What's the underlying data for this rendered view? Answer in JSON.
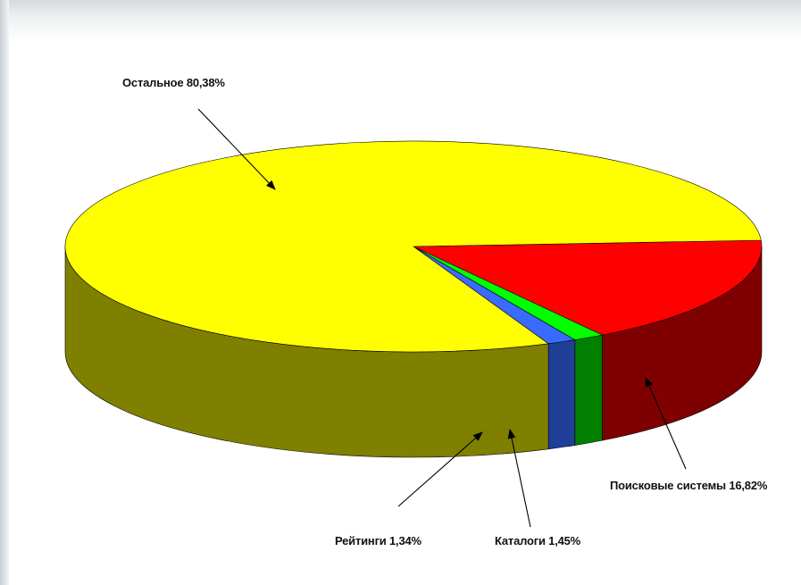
{
  "chart_data": {
    "type": "pie",
    "style": "3d",
    "slices": [
      {
        "label": "Остальное",
        "value": 80.38,
        "text": "Остальное 80,38%",
        "top_color": "#ffff00",
        "side_color": "#7f7f00"
      },
      {
        "label": "Поисковые системы",
        "value": 16.82,
        "text": "Поисковые системы 16,82%",
        "top_color": "#ff0000",
        "side_color": "#7f0000"
      },
      {
        "label": "Каталоги",
        "value": 1.45,
        "text": "Каталоги 1,45%",
        "top_color": "#00ff00",
        "side_color": "#007f00"
      },
      {
        "label": "Рейтинги",
        "value": 1.34,
        "text": "Рейтинги 1,34%",
        "top_color": "#3a6bff",
        "side_color": "#1f3f99"
      }
    ],
    "legend": "none",
    "labels": "callouts-with-arrows"
  }
}
